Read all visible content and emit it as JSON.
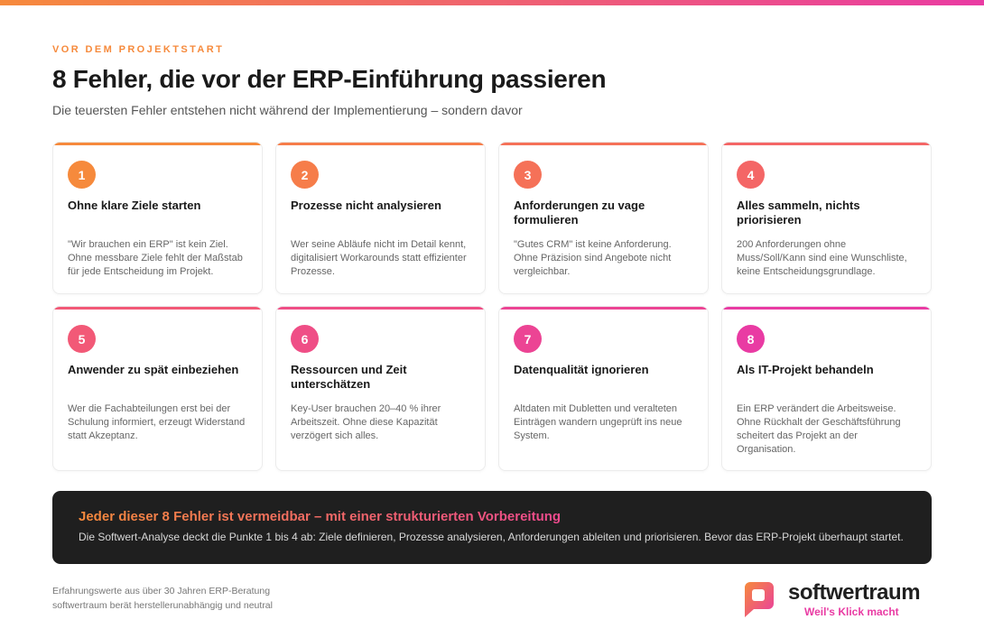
{
  "header": {
    "eyebrow": "VOR DEM PROJEKTSTART",
    "title": "8 Fehler, die vor der ERP-Einführung passieren",
    "subtitle": "Die teuersten Fehler entstehen nicht während der Implementierung – sondern davor"
  },
  "cards": [
    {
      "number": "1",
      "title": "Ohne klare Ziele starten",
      "text": "\"Wir brauchen ein ERP\" ist kein Ziel. Ohne messbare Ziele fehlt der Maßstab für jede Entscheidung im Projekt."
    },
    {
      "number": "2",
      "title": "Prozesse nicht analysieren",
      "text": "Wer seine Abläufe nicht im Detail kennt, digitalisiert Workarounds statt effizienter Prozesse."
    },
    {
      "number": "3",
      "title": "Anforderungen zu vage formulieren",
      "text": "\"Gutes CRM\" ist keine Anforderung. Ohne Präzision sind Angebote nicht vergleichbar."
    },
    {
      "number": "4",
      "title": "Alles sammeln, nichts priorisieren",
      "text": "200 Anforderungen ohne Muss/Soll/Kann sind eine Wunschliste, keine Entscheidungsgrundlage."
    },
    {
      "number": "5",
      "title": "Anwender zu spät einbeziehen",
      "text": "Wer die Fachabteilungen erst bei der Schulung informiert, erzeugt Widerstand statt Akzeptanz."
    },
    {
      "number": "6",
      "title": "Ressourcen und Zeit unterschätzen",
      "text": "Key-User brauchen 20–40 % ihrer Arbeitszeit. Ohne diese Kapazität verzögert sich alles."
    },
    {
      "number": "7",
      "title": "Datenqualität ignorieren",
      "text": "Altdaten mit Dubletten und veralteten Einträgen wandern ungeprüft ins neue System."
    },
    {
      "number": "8",
      "title": "Als IT-Projekt behandeln",
      "text": "Ein ERP verändert die Arbeitsweise. Ohne Rückhalt der Geschäftsführung scheitert das Projekt an der Organisation."
    }
  ],
  "callout": {
    "title": "Jeder dieser 8 Fehler ist vermeidbar – mit einer strukturierten Vorbereitung",
    "text": "Die Softwert-Analyse deckt die Punkte 1 bis 4 ab: Ziele definieren, Prozesse analysieren, Anforderungen ableiten und priorisieren. Bevor das ERP-Projekt überhaupt startet."
  },
  "footer": {
    "lines": [
      "Erfahrungswerte aus über 30 Jahren ERP-Beratung",
      "softwertraum berät herstellerunabhängig und neutral"
    ],
    "brand": "softwertraum",
    "tagline": "Weil's Klick macht"
  }
}
